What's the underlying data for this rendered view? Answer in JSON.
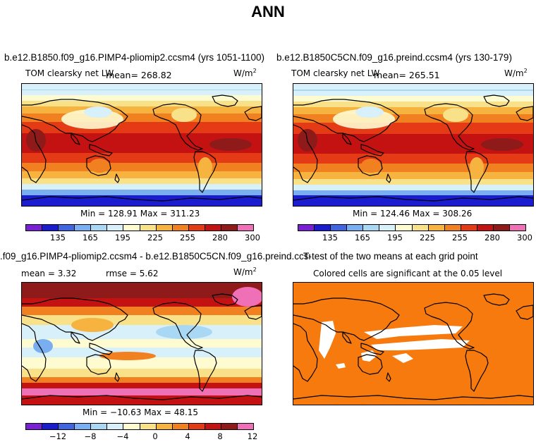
{
  "figure_title": "ANN",
  "units": "W/m",
  "units_exp": "2",
  "colors": {
    "abs_palette": [
      "#7a1fd6",
      "#1b1bd0",
      "#3f66e0",
      "#79aff0",
      "#a9d8f4",
      "#d8f0fa",
      "#fffbd0",
      "#f9e18a",
      "#f7b340",
      "#f08020",
      "#e43a16",
      "#c41212",
      "#8f1a1a",
      "#f070b8"
    ],
    "diff_palette": [
      "#7a1fd6",
      "#1b1bd0",
      "#3f66e0",
      "#79aff0",
      "#a9d8f4",
      "#d8f0fa",
      "#fffbd0",
      "#f9e18a",
      "#f7b340",
      "#f08020",
      "#e43a16",
      "#c41212",
      "#8f1a1a",
      "#f070b8"
    ],
    "significance": "#f77a0f"
  },
  "panels": {
    "test": {
      "case": "b.e12.B1850.f09_g16.PIMP4-pliomip2.ccsm4 (yrs 1051-1100)",
      "variable": "TOM clearsky net LW",
      "mean_text": "mean= 268.82",
      "minmax": "Min = 128.91 Max = 311.23",
      "ticks": [
        "135",
        "165",
        "195",
        "225",
        "255",
        "280",
        "300"
      ]
    },
    "control": {
      "case": "b.e12.B1850C5CN.f09_g16.preind.ccsm4 (yrs 130-179)",
      "variable": "TOM clearsky net LW",
      "mean_text": "mean= 265.51",
      "minmax": "Min = 124.46 Max = 308.26",
      "ticks": [
        "135",
        "165",
        "195",
        "225",
        "255",
        "280",
        "300"
      ]
    },
    "diff": {
      "case": ".f09_g16.PIMP4-pliomip2.ccsm4 - b.e12.B1850C5CN.f09_g16.preind.ccsm4",
      "mean_text": "mean =    3.32",
      "rmse_text": "rmse =    5.62",
      "minmax": "Min = −10.63 Max =  48.15",
      "ticks": [
        "−12",
        "−8",
        "−4",
        "0",
        "4",
        "8",
        "12"
      ]
    },
    "ttest": {
      "title": "T-test of the two means at each grid point",
      "subtitle": "Colored cells are significant at the 0.05 level"
    }
  }
}
